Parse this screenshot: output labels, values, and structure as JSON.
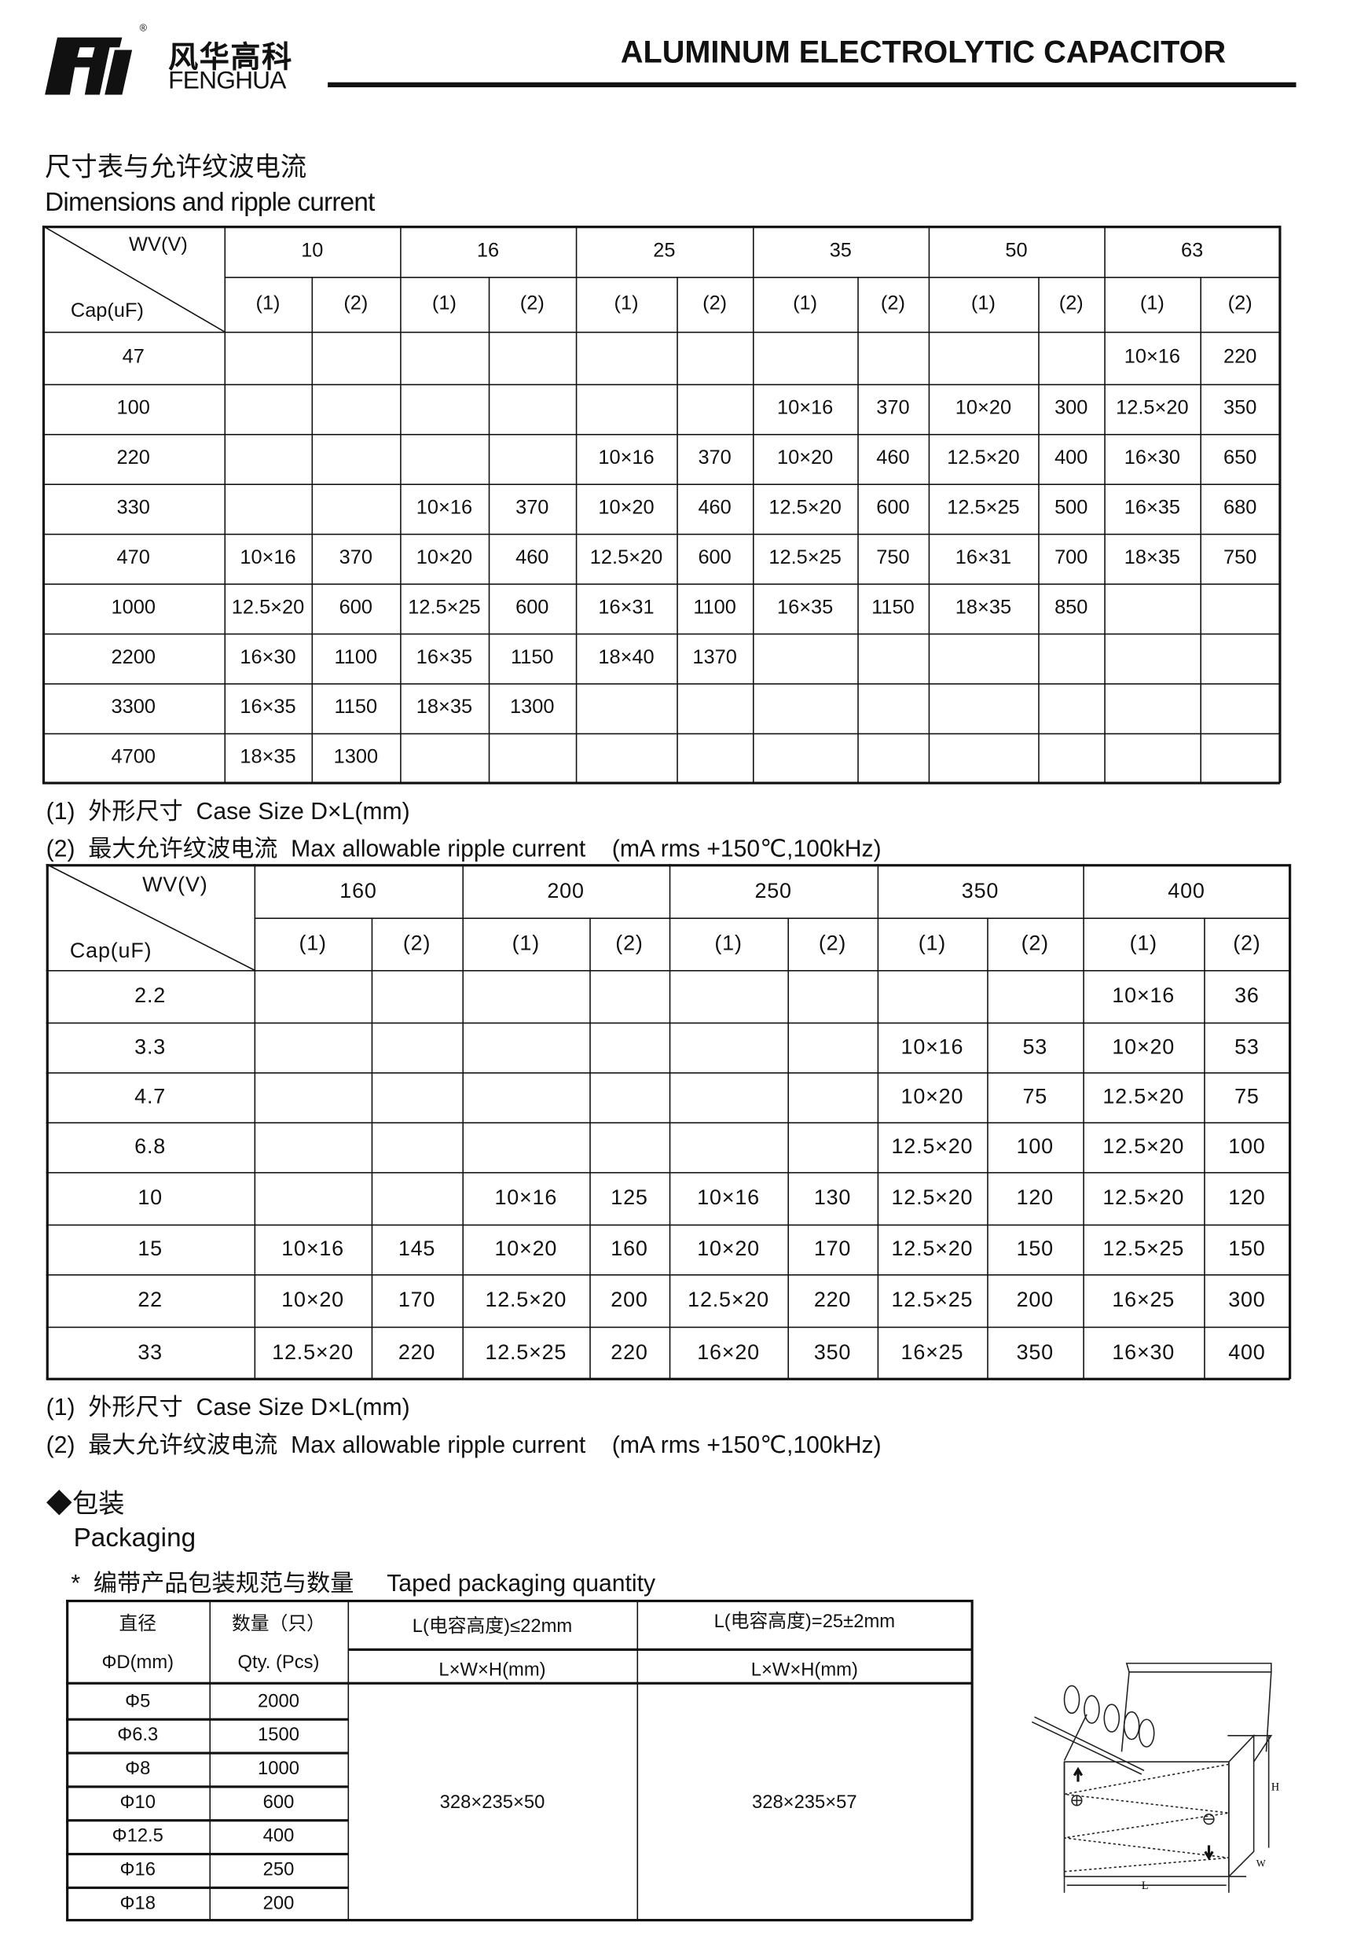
{
  "header": {
    "logo_cn": "风华高科",
    "logo_en": "FENGHUA",
    "logo_mark": "FH",
    "title": "ALUMINUM ELECTROLYTIC CAPACITOR"
  },
  "section1": {
    "title_cn": "尺寸表与允许纹波电流",
    "title_en": "Dimensions and ripple current"
  },
  "table1": {
    "wv_label": "WV(V)",
    "cap_label": "Cap(uF)",
    "voltages": [
      "10",
      "16",
      "25",
      "35",
      "50",
      "63"
    ],
    "sub_headers": [
      "(1)",
      "(2)"
    ],
    "rows": [
      {
        "cap": "47",
        "cells": [
          "",
          "",
          "",
          "",
          "",
          "",
          "",
          "",
          "",
          "",
          "10×16",
          "220"
        ]
      },
      {
        "cap": "100",
        "cells": [
          "",
          "",
          "",
          "",
          "",
          "",
          "10×16",
          "370",
          "10×20",
          "300",
          "12.5×20",
          "350"
        ]
      },
      {
        "cap": "220",
        "cells": [
          "",
          "",
          "",
          "",
          "10×16",
          "370",
          "10×20",
          "460",
          "12.5×20",
          "400",
          "16×30",
          "650"
        ]
      },
      {
        "cap": "330",
        "cells": [
          "",
          "",
          "10×16",
          "370",
          "10×20",
          "460",
          "12.5×20",
          "600",
          "12.5×25",
          "500",
          "16×35",
          "680"
        ]
      },
      {
        "cap": "470",
        "cells": [
          "10×16",
          "370",
          "10×20",
          "460",
          "12.5×20",
          "600",
          "12.5×25",
          "750",
          "16×31",
          "700",
          "18×35",
          "750"
        ]
      },
      {
        "cap": "1000",
        "cells": [
          "12.5×20",
          "600",
          "12.5×25",
          "600",
          "16×31",
          "1100",
          "16×35",
          "1150",
          "18×35",
          "850",
          "",
          ""
        ]
      },
      {
        "cap": "2200",
        "cells": [
          "16×30",
          "1100",
          "16×35",
          "1150",
          "18×40",
          "1370",
          "",
          "",
          "",
          "",
          "",
          ""
        ]
      },
      {
        "cap": "3300",
        "cells": [
          "16×35",
          "1150",
          "18×35",
          "1300",
          "",
          "",
          "",
          "",
          "",
          "",
          "",
          ""
        ]
      },
      {
        "cap": "4700",
        "cells": [
          "18×35",
          "1300",
          "",
          "",
          "",
          "",
          "",
          "",
          "",
          "",
          "",
          ""
        ]
      }
    ],
    "note1": "(1)  外形尺寸  Case Size D×L(mm)",
    "note2": "(2)  最大允许纹波电流  Max allowable ripple current    (mA rms +150℃,100kHz)"
  },
  "table2": {
    "wv_label": "WV(V)",
    "cap_label": "Cap(uF)",
    "voltages": [
      "160",
      "200",
      "250",
      "350",
      "400"
    ],
    "sub_headers": [
      "(1)",
      "(2)"
    ],
    "rows": [
      {
        "cap": "2.2",
        "cells": [
          "",
          "",
          "",
          "",
          "",
          "",
          "",
          "",
          "10×16",
          "36"
        ]
      },
      {
        "cap": "3.3",
        "cells": [
          "",
          "",
          "",
          "",
          "",
          "",
          "10×16",
          "53",
          "10×20",
          "53"
        ]
      },
      {
        "cap": "4.7",
        "cells": [
          "",
          "",
          "",
          "",
          "",
          "",
          "10×20",
          "75",
          "12.5×20",
          "75"
        ]
      },
      {
        "cap": "6.8",
        "cells": [
          "",
          "",
          "",
          "",
          "",
          "",
          "12.5×20",
          "100",
          "12.5×20",
          "100"
        ]
      },
      {
        "cap": "10",
        "cells": [
          "",
          "",
          "10×16",
          "125",
          "10×16",
          "130",
          "12.5×20",
          "120",
          "12.5×20",
          "120"
        ]
      },
      {
        "cap": "15",
        "cells": [
          "10×16",
          "145",
          "10×20",
          "160",
          "10×20",
          "170",
          "12.5×20",
          "150",
          "12.5×25",
          "150"
        ]
      },
      {
        "cap": "22",
        "cells": [
          "10×20",
          "170",
          "12.5×20",
          "200",
          "12.5×20",
          "220",
          "12.5×25",
          "200",
          "16×25",
          "300"
        ]
      },
      {
        "cap": "33",
        "cells": [
          "12.5×20",
          "220",
          "12.5×25",
          "220",
          "16×20",
          "350",
          "16×25",
          "350",
          "16×30",
          "400"
        ]
      }
    ],
    "note1": "(1)  外形尺寸  Case Size D×L(mm)",
    "note2": "(2)  最大允许纹波电流  Max allowable ripple current    (mA rms +150℃,100kHz)"
  },
  "packaging": {
    "title_cn": "◆包装",
    "title_en": "Packaging",
    "subtitle": "*  编带产品包装规范与数量     Taped packaging quantity",
    "col_diameter_cn": "直径",
    "col_diameter_en": "ΦD(mm)",
    "col_qty_cn": "数量（只）",
    "col_qty_en": "Qty. (Pcs)",
    "col_a": "L(电容高度)≤22mm",
    "col_b": "L(电容高度)=25±2mm",
    "dim_label_a": "L×W×H(mm)",
    "dim_label_b": "L×W×H(mm)",
    "dim_a": "328×235×50",
    "dim_b": "328×235×57",
    "rows": [
      {
        "d": "Φ5",
        "qty": "2000"
      },
      {
        "d": "Φ6.3",
        "qty": "1500"
      },
      {
        "d": "Φ8",
        "qty": "1000"
      },
      {
        "d": "Φ10",
        "qty": "600"
      },
      {
        "d": "Φ12.5",
        "qty": "400"
      },
      {
        "d": "Φ16",
        "qty": "250"
      },
      {
        "d": "Φ18",
        "qty": "200"
      }
    ],
    "diagram_labels": {
      "h": "H",
      "w": "W",
      "l": "L"
    }
  }
}
